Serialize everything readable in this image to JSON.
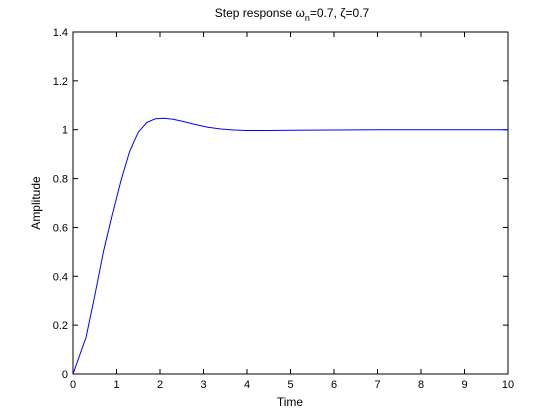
{
  "chart_data": {
    "type": "line",
    "title": "Step response ωn=0.7, ζ=0.7",
    "title_parts": {
      "prefix": "Step response ",
      "omega_symbol": "ω",
      "omega_subscript": "n",
      "omega_value": "=0.7, ",
      "zeta_symbol": "ζ",
      "zeta_value": "=0.7"
    },
    "xlabel": "Time",
    "ylabel": "Amplitude",
    "xlim": [
      0,
      10
    ],
    "ylim": [
      0,
      1.4
    ],
    "xticks": [
      0,
      1,
      2,
      3,
      4,
      5,
      6,
      7,
      8,
      9,
      10
    ],
    "yticks": [
      0,
      0.2,
      0.4,
      0.6,
      0.8,
      1,
      1.2,
      1.4
    ],
    "xtick_labels": [
      "0",
      "1",
      "2",
      "3",
      "4",
      "5",
      "6",
      "7",
      "8",
      "9",
      "10"
    ],
    "ytick_labels": [
      "0",
      "0.2",
      "0.4",
      "0.6",
      "0.8",
      "1",
      "1.2",
      "1.4"
    ],
    "grid": false,
    "series": [
      {
        "color": "#0000ff",
        "x": [
          0,
          0.1,
          0.3,
          0.5,
          0.7,
          0.9,
          1.1,
          1.3,
          1.5,
          1.7,
          1.9,
          2.1,
          2.3,
          2.5,
          2.8,
          3.1,
          3.4,
          3.7,
          4.0,
          4.5,
          5.0,
          6.0,
          7.0,
          8.0,
          9.0,
          10.0
        ],
        "y": [
          0,
          0.05,
          0.15,
          0.32,
          0.5,
          0.65,
          0.79,
          0.91,
          0.99,
          1.03,
          1.045,
          1.047,
          1.043,
          1.035,
          1.022,
          1.01,
          1.003,
          0.999,
          0.997,
          0.997,
          0.998,
          0.999,
          1.0,
          1.0,
          1.0,
          1.0
        ]
      }
    ]
  }
}
